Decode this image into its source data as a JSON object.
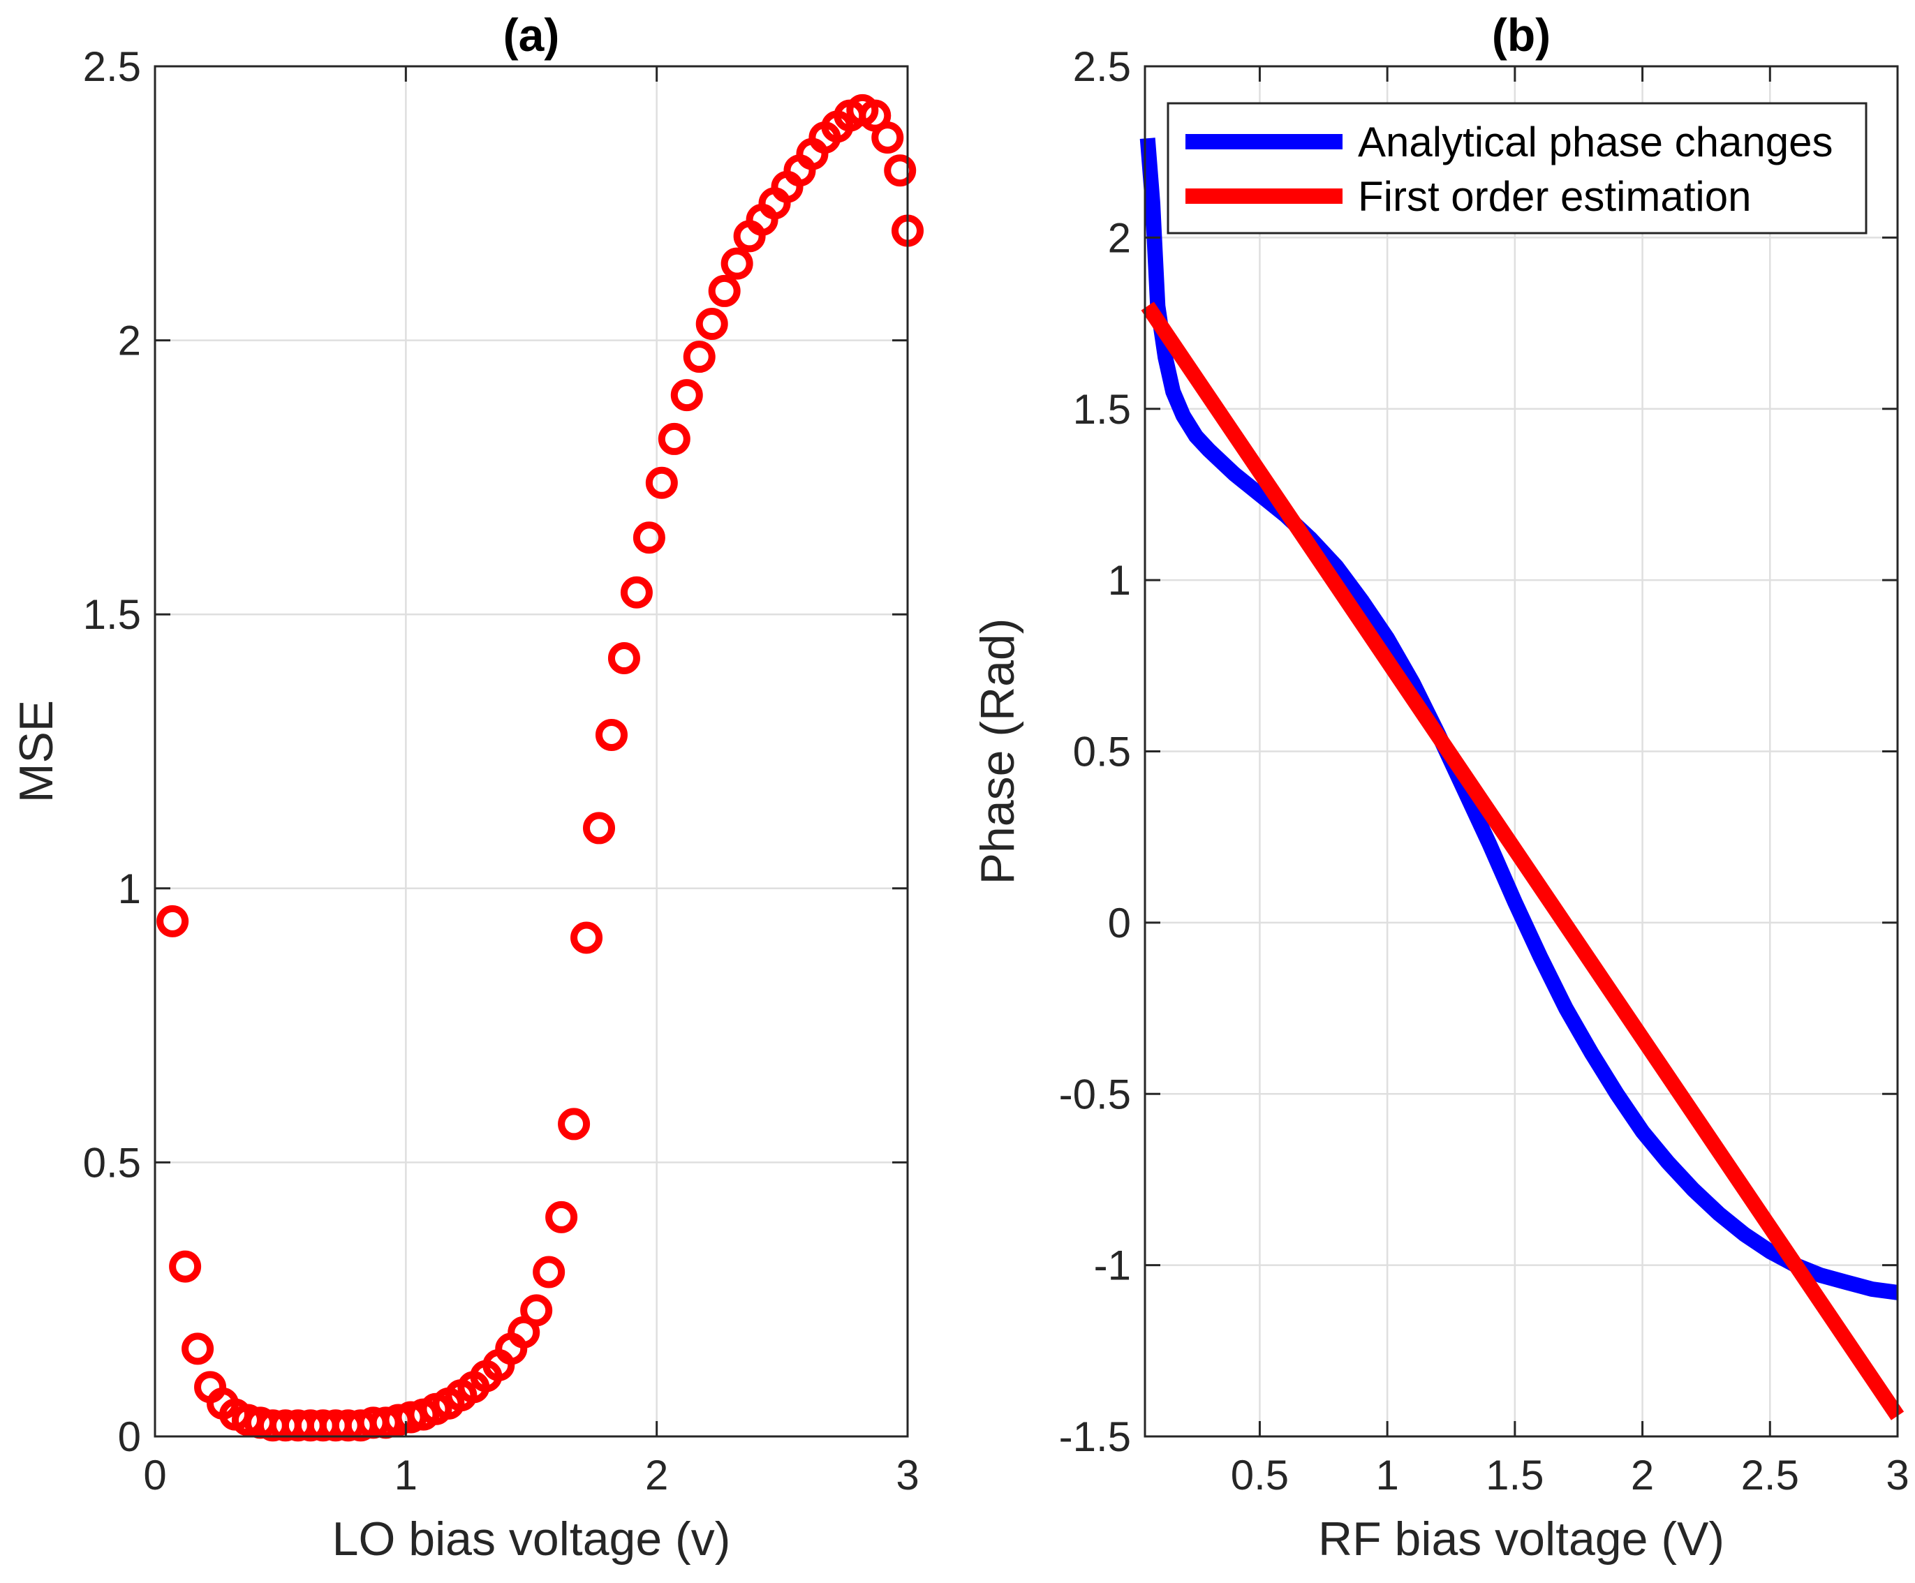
{
  "colors": {
    "marker": "#ff0000",
    "analytical": "#0000ff",
    "estimation": "#ff0000",
    "axis": "#262626",
    "grid": "#dfdfdf"
  },
  "chart_data": [
    {
      "type": "scatter",
      "title": "(a)",
      "xlabel": "LO bias voltage (v)",
      "ylabel": "MSE",
      "xlim": [
        0,
        3
      ],
      "ylim": [
        0,
        2.5
      ],
      "xticks": [
        0,
        1,
        2,
        3
      ],
      "xtick_labels": [
        "0",
        "1",
        "2",
        "3"
      ],
      "yticks": [
        0,
        0.5,
        1,
        1.5,
        2,
        2.5
      ],
      "ytick_labels": [
        "0",
        "0.5",
        "1",
        "1.5",
        "2",
        "2.5"
      ],
      "grid": true,
      "marker": "circle",
      "series": [
        {
          "name": "MSE",
          "x": [
            0.07,
            0.12,
            0.17,
            0.22,
            0.27,
            0.32,
            0.37,
            0.42,
            0.47,
            0.52,
            0.57,
            0.62,
            0.67,
            0.72,
            0.77,
            0.82,
            0.87,
            0.92,
            0.97,
            1.02,
            1.07,
            1.12,
            1.17,
            1.22,
            1.27,
            1.32,
            1.37,
            1.42,
            1.47,
            1.52,
            1.57,
            1.62,
            1.67,
            1.72,
            1.77,
            1.82,
            1.87,
            1.92,
            1.97,
            2.02,
            2.07,
            2.12,
            2.17,
            2.22,
            2.27,
            2.32,
            2.37,
            2.42,
            2.47,
            2.52,
            2.57,
            2.62,
            2.67,
            2.72,
            2.77,
            2.82,
            2.87,
            2.92,
            2.97,
            3.0
          ],
          "y": [
            0.94,
            0.31,
            0.16,
            0.09,
            0.06,
            0.04,
            0.03,
            0.025,
            0.02,
            0.02,
            0.02,
            0.02,
            0.02,
            0.02,
            0.02,
            0.02,
            0.025,
            0.025,
            0.03,
            0.035,
            0.04,
            0.05,
            0.06,
            0.075,
            0.09,
            0.11,
            0.13,
            0.16,
            0.19,
            0.23,
            0.3,
            0.4,
            0.57,
            0.91,
            1.11,
            1.28,
            1.42,
            1.54,
            1.64,
            1.74,
            1.82,
            1.9,
            1.97,
            2.03,
            2.09,
            2.14,
            2.19,
            2.22,
            2.25,
            2.28,
            2.31,
            2.34,
            2.37,
            2.39,
            2.41,
            2.42,
            2.41,
            2.37,
            2.31,
            2.2
          ]
        }
      ]
    },
    {
      "type": "line",
      "title": "(b)",
      "xlabel": "RF bias voltage (V)",
      "ylabel": "Phase (Rad)",
      "xlim": [
        0.05,
        3
      ],
      "ylim": [
        -1.5,
        2.5
      ],
      "xticks": [
        0.5,
        1,
        1.5,
        2,
        2.5,
        3
      ],
      "xtick_labels": [
        "0.5",
        "1",
        "1.5",
        "2",
        "2.5",
        "3"
      ],
      "yticks": [
        -1.5,
        -1,
        -0.5,
        0,
        0.5,
        1,
        1.5,
        2,
        2.5
      ],
      "ytick_labels": [
        "-1.5",
        "-1",
        "-0.5",
        "0",
        "0.5",
        "1",
        "1.5",
        "2",
        "2.5"
      ],
      "grid": true,
      "legend_position": "top-right",
      "series": [
        {
          "name": "Analytical phase changes",
          "x": [
            0.06,
            0.08,
            0.1,
            0.13,
            0.16,
            0.2,
            0.25,
            0.3,
            0.4,
            0.5,
            0.6,
            0.7,
            0.8,
            0.9,
            1.0,
            1.1,
            1.2,
            1.3,
            1.4,
            1.5,
            1.6,
            1.7,
            1.8,
            1.9,
            2.0,
            2.1,
            2.2,
            2.3,
            2.4,
            2.5,
            2.6,
            2.7,
            2.8,
            2.9,
            3.0
          ],
          "y": [
            2.29,
            2.1,
            1.8,
            1.65,
            1.55,
            1.48,
            1.42,
            1.38,
            1.31,
            1.25,
            1.19,
            1.12,
            1.04,
            0.94,
            0.83,
            0.7,
            0.55,
            0.39,
            0.23,
            0.06,
            -0.1,
            -0.25,
            -0.38,
            -0.5,
            -0.61,
            -0.7,
            -0.78,
            -0.85,
            -0.91,
            -0.96,
            -1.0,
            -1.03,
            -1.05,
            -1.07,
            -1.08
          ]
        },
        {
          "name": "First order estimation",
          "x": [
            0.06,
            3.0
          ],
          "y": [
            1.8,
            -1.44
          ]
        }
      ]
    }
  ]
}
